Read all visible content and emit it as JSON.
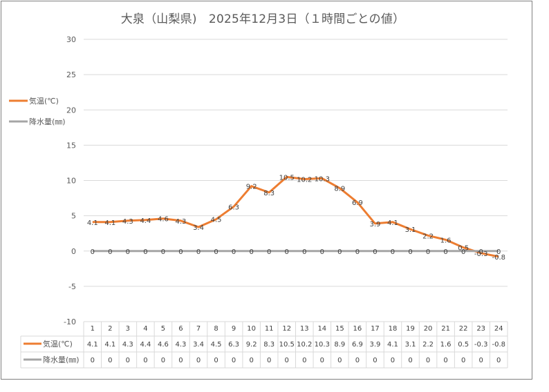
{
  "title": "大泉（山梨県)　2025年12月3日（１時間ごとの値）",
  "chart_data": {
    "type": "line",
    "title": "大泉（山梨県)　2025年12月3日（１時間ごとの値）",
    "categories": [
      "1",
      "2",
      "3",
      "4",
      "5",
      "6",
      "7",
      "8",
      "9",
      "10",
      "11",
      "12",
      "13",
      "14",
      "15",
      "16",
      "17",
      "18",
      "19",
      "20",
      "21",
      "22",
      "23",
      "24"
    ],
    "ylim": [
      -10,
      30
    ],
    "yticks": [
      30,
      25,
      20,
      15,
      10,
      5,
      0,
      -5,
      -10
    ],
    "grid": true,
    "legend_placement": "left",
    "series": [
      {
        "name": "気温(℃)",
        "color": "#ed7d31",
        "values": [
          4.1,
          4.1,
          4.3,
          4.4,
          4.6,
          4.3,
          3.4,
          4.5,
          6.3,
          9.2,
          8.3,
          10.5,
          10.2,
          10.3,
          8.9,
          6.9,
          3.9,
          4.1,
          3.1,
          2.2,
          1.6,
          0.5,
          -0.3,
          -0.8
        ]
      },
      {
        "name": "降水量(㎜)",
        "color": "#a5a5a5",
        "values": [
          0,
          0,
          0,
          0,
          0,
          0,
          0,
          0,
          0,
          0,
          0,
          0,
          0,
          0,
          0,
          0,
          0,
          0,
          0,
          0,
          0,
          0,
          0,
          0
        ]
      }
    ]
  }
}
